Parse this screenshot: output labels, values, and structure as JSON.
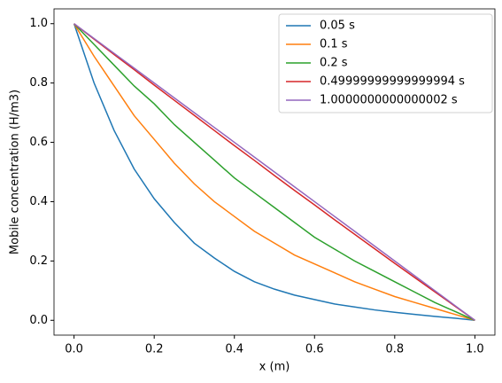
{
  "chart_data": {
    "type": "line",
    "xlabel": "x (m)",
    "ylabel": "Mobile concentration (H/m3)",
    "x": [
      0,
      0.05,
      0.1,
      0.15,
      0.2,
      0.25,
      0.3,
      0.35,
      0.4,
      0.45,
      0.5,
      0.55,
      0.6,
      0.65,
      0.7,
      0.75,
      0.8,
      0.85,
      0.9,
      0.95,
      1
    ],
    "series": [
      {
        "name": "0.05 s",
        "color": "#1f77b4",
        "values": [
          1,
          0.8,
          0.64,
          0.51,
          0.41,
          0.33,
          0.26,
          0.21,
          0.165,
          0.13,
          0.105,
          0.085,
          0.07,
          0.055,
          0.045,
          0.035,
          0.027,
          0.02,
          0.013,
          0.007,
          0
        ]
      },
      {
        "name": "0.1 s",
        "color": "#ff7f0e",
        "values": [
          1,
          0.89,
          0.79,
          0.69,
          0.61,
          0.53,
          0.46,
          0.4,
          0.35,
          0.3,
          0.26,
          0.22,
          0.19,
          0.16,
          0.13,
          0.105,
          0.08,
          0.06,
          0.04,
          0.02,
          0
        ]
      },
      {
        "name": "0.2 s",
        "color": "#2ca02c",
        "values": [
          1,
          0.93,
          0.86,
          0.79,
          0.73,
          0.66,
          0.6,
          0.54,
          0.48,
          0.43,
          0.38,
          0.33,
          0.28,
          0.24,
          0.2,
          0.165,
          0.13,
          0.095,
          0.06,
          0.03,
          0
        ]
      },
      {
        "name": "0.49999999999999994 s",
        "color": "#d62728",
        "values": [
          1,
          0.948,
          0.896,
          0.845,
          0.793,
          0.742,
          0.691,
          0.64,
          0.589,
          0.539,
          0.488,
          0.438,
          0.389,
          0.339,
          0.29,
          0.241,
          0.192,
          0.144,
          0.096,
          0.048,
          0
        ]
      },
      {
        "name": "1.0000000000000002 s",
        "color": "#9467bd",
        "values": [
          1,
          0.95,
          0.9,
          0.85,
          0.8,
          0.75,
          0.7,
          0.65,
          0.6,
          0.55,
          0.5,
          0.45,
          0.4,
          0.35,
          0.3,
          0.25,
          0.2,
          0.15,
          0.1,
          0.05,
          0
        ]
      }
    ],
    "xlim": [
      -0.05,
      1.05
    ],
    "xticks": [
      {
        "value": 0,
        "label": "0.0"
      },
      0.2,
      0.4,
      0.6,
      0.8,
      {
        "value": 1,
        "label": "1.0"
      }
    ],
    "ylim": [
      -0.05,
      1.05
    ],
    "yticks": [
      {
        "value": 0,
        "label": "0.0"
      },
      0.2,
      0.4,
      0.6,
      0.8,
      {
        "value": 1,
        "label": "1.0"
      }
    ],
    "legend": "upper right",
    "grid": false
  }
}
